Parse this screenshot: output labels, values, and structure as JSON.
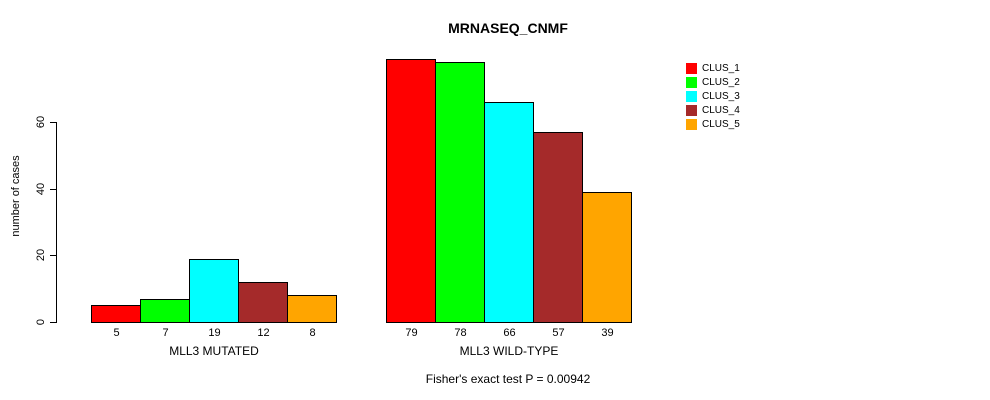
{
  "chart_data": {
    "type": "bar",
    "title": "MRNASEQ_CNMF",
    "ylabel": "number of cases",
    "ylim": [
      0,
      60
    ],
    "yticks": [
      0,
      20,
      40,
      60
    ],
    "grid": false,
    "legend_position": "right",
    "categories": [
      "MLL3 MUTATED",
      "MLL3 WILD-TYPE"
    ],
    "series": [
      {
        "name": "CLUS_1",
        "color": "#FF0000",
        "values": [
          5,
          79
        ]
      },
      {
        "name": "CLUS_2",
        "color": "#00FF00",
        "values": [
          7,
          78
        ]
      },
      {
        "name": "CLUS_3",
        "color": "#00FFFF",
        "values": [
          19,
          66
        ]
      },
      {
        "name": "CLUS_4",
        "color": "#A52A2A",
        "values": [
          12,
          57
        ]
      },
      {
        "name": "CLUS_5",
        "color": "#FFA500",
        "values": [
          8,
          39
        ]
      }
    ],
    "bar_value_labels_shown": true,
    "annotation": "Fisher's exact test P = 0.00942"
  }
}
